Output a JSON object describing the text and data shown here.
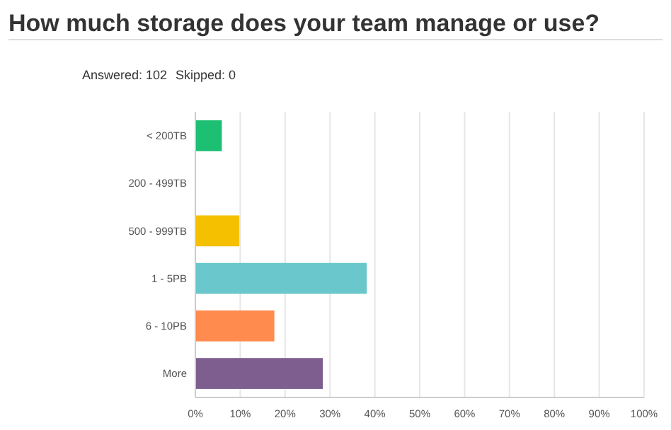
{
  "chart_data": {
    "type": "bar",
    "orientation": "horizontal",
    "title": "How much storage does your team manage or use?",
    "annotations": [
      "Answered: 102",
      "Skipped: 0"
    ],
    "categories": [
      "< 200TB",
      "200 - 499TB",
      "500 - 999TB",
      "1 - 5PB",
      "6 - 10PB",
      "More"
    ],
    "values": [
      5.9,
      0,
      9.8,
      38.2,
      17.6,
      28.4
    ],
    "colors": [
      "#1dbf73",
      null,
      "#f5c000",
      "#6ac7cb",
      "#ff8b4f",
      "#7d5e8f"
    ],
    "xlim": [
      0,
      100
    ],
    "xticks": [
      {
        "value": 0,
        "label": "0%"
      },
      {
        "value": 10,
        "label": "10%"
      },
      {
        "value": 20,
        "label": "20%"
      },
      {
        "value": 30,
        "label": "30%"
      },
      {
        "value": 40,
        "label": "40%"
      },
      {
        "value": 50,
        "label": "50%"
      },
      {
        "value": 60,
        "label": "60%"
      },
      {
        "value": 70,
        "label": "70%"
      },
      {
        "value": 80,
        "label": "80%"
      },
      {
        "value": 90,
        "label": "90%"
      },
      {
        "value": 100,
        "label": "100%"
      }
    ],
    "grid": "x"
  }
}
